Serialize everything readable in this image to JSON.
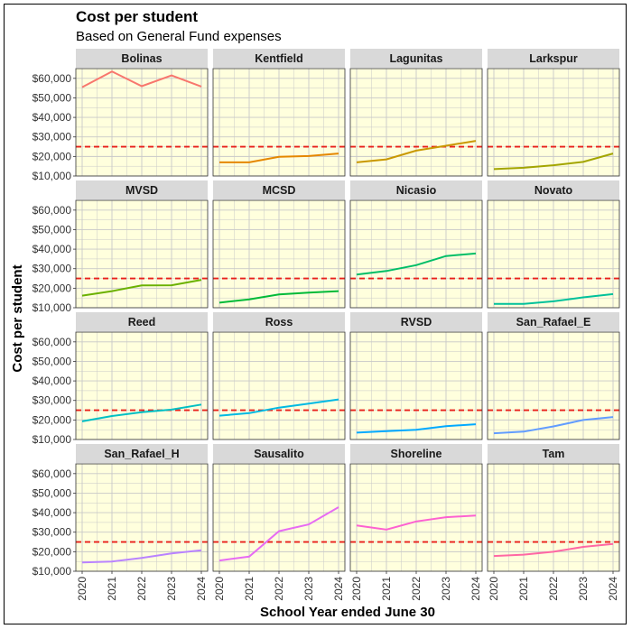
{
  "chart_data": {
    "type": "line",
    "title": "Cost per student",
    "subtitle": "Based on General Fund expenses",
    "xlabel": "School Year ended June 30",
    "ylabel": "Cost per student",
    "x": [
      2020,
      2021,
      2022,
      2023,
      2024
    ],
    "x_tick_labels": [
      "2020",
      "2021",
      "2022",
      "2023",
      "2024"
    ],
    "ylim": [
      10000,
      65000
    ],
    "y_ticks": [
      10000,
      20000,
      30000,
      40000,
      50000,
      60000
    ],
    "y_tick_labels": [
      "$10,000",
      "$20,000",
      "$30,000",
      "$40,000",
      "$50,000",
      "$60,000"
    ],
    "reference_line": {
      "value": 25000,
      "color": "#e8201c",
      "style": "dashed"
    },
    "panel_background": "#ffffdd",
    "strip_background": "#d9d9d9",
    "grid": true,
    "layout": "facet 4x4",
    "series": [
      {
        "name": "Bolinas",
        "color": "#f8766d",
        "values": [
          55500,
          63500,
          56000,
          61500,
          55800
        ]
      },
      {
        "name": "Kentfield",
        "color": "#e58700",
        "values": [
          17000,
          17000,
          19800,
          20200,
          21500
        ]
      },
      {
        "name": "Lagunitas",
        "color": "#c99800",
        "values": [
          17000,
          18500,
          23000,
          25500,
          28000
        ]
      },
      {
        "name": "Larkspur",
        "color": "#a3a500",
        "values": [
          13500,
          14200,
          15500,
          17200,
          21500
        ]
      },
      {
        "name": "MVSD",
        "color": "#6bb100",
        "values": [
          16200,
          18500,
          21400,
          21500,
          24300
        ]
      },
      {
        "name": "MCSD",
        "color": "#00ba38",
        "values": [
          12600,
          14300,
          16800,
          17700,
          18500
        ]
      },
      {
        "name": "Nicasio",
        "color": "#00be67",
        "values": [
          27000,
          28800,
          31800,
          36500,
          37800
        ]
      },
      {
        "name": "Novato",
        "color": "#00c19a",
        "values": [
          12000,
          12000,
          13300,
          15300,
          17000
        ]
      },
      {
        "name": "Reed",
        "color": "#00bfc4",
        "values": [
          19300,
          22000,
          24000,
          25300,
          27900
        ]
      },
      {
        "name": "Ross",
        "color": "#00b9e3",
        "values": [
          22200,
          23500,
          26300,
          28400,
          30500
        ]
      },
      {
        "name": "RVSD",
        "color": "#00a9ff",
        "values": [
          13500,
          14300,
          15000,
          16800,
          17800
        ]
      },
      {
        "name": "San_Rafael_E",
        "color": "#619cff",
        "values": [
          13200,
          14000,
          16700,
          20000,
          21500
        ]
      },
      {
        "name": "San_Rafael_H",
        "color": "#b983ff",
        "values": [
          14500,
          15000,
          16800,
          19100,
          20700
        ]
      },
      {
        "name": "Sausalito",
        "color": "#e76bf3",
        "values": [
          15500,
          17500,
          30500,
          34000,
          42800
        ]
      },
      {
        "name": "Shoreline",
        "color": "#fd61d1",
        "values": [
          33500,
          31300,
          35500,
          37700,
          38500
        ]
      },
      {
        "name": "Tam",
        "color": "#ff67a4",
        "values": [
          17800,
          18500,
          20000,
          22500,
          24000
        ]
      }
    ]
  }
}
